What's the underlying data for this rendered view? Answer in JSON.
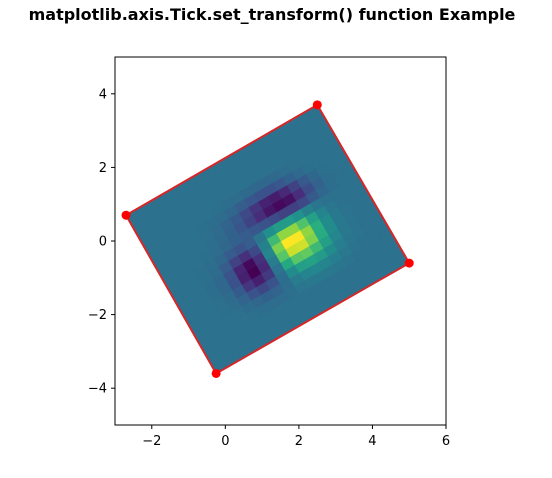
{
  "chart_data": {
    "type": "heatmap",
    "title": "matplotlib.axis.Tick.set_transform() function Example",
    "xlabel": "",
    "ylabel": "",
    "xlim": [
      -3,
      6
    ],
    "ylim": [
      -5,
      5
    ],
    "grid": false,
    "colormap": "viridis",
    "x_ticks": [
      -2,
      0,
      2,
      4,
      6
    ],
    "y_ticks": [
      -4,
      -2,
      0,
      2,
      4
    ],
    "x_tick_labels": [
      "−2",
      "0",
      "2",
      "4",
      "6"
    ],
    "y_tick_labels": [
      "−4",
      "−2",
      "0",
      "2",
      "4"
    ],
    "image_corners": [
      [
        -2.7,
        0.7
      ],
      [
        2.5,
        3.7
      ],
      [
        5.0,
        -0.6
      ],
      [
        -0.25,
        -3.6
      ]
    ],
    "outline_color": "#d62728",
    "marker_color": "#ff0000",
    "rotation_deg": 30,
    "image_extent": [
      -4,
      4,
      -4,
      4
    ],
    "image_values": [
      [
        0.0,
        0.0,
        0.0,
        0.0,
        0.0,
        0.0,
        0.0,
        0.0,
        0.0,
        0.0,
        0.0,
        0.0,
        0.0,
        0.0,
        0.0,
        0.0,
        0.0,
        0.0,
        0.0,
        0.0
      ],
      [
        0.0,
        0.0,
        0.0,
        0.0,
        0.0,
        0.0,
        0.0,
        0.0,
        0.0,
        0.0,
        0.0,
        0.0,
        0.0,
        0.0,
        0.0,
        0.0,
        0.0,
        0.0,
        0.0,
        0.0
      ],
      [
        0.0,
        0.0,
        0.0,
        0.0,
        0.0,
        0.0,
        0.0,
        0.0,
        0.0,
        0.0,
        0.0,
        0.0,
        0.0,
        0.0,
        0.0,
        0.0,
        0.0,
        0.0,
        0.0,
        0.0
      ],
      [
        0.0,
        0.0,
        0.0,
        0.0,
        0.0,
        0.0,
        0.0,
        0.0,
        0.0,
        0.0,
        0.0,
        0.0,
        0.0,
        0.0,
        0.0,
        0.0,
        0.0,
        0.0,
        0.0,
        0.0
      ],
      [
        0.0,
        0.0,
        0.0,
        0.0,
        0.0,
        0.0,
        0.0,
        -0.01,
        -0.02,
        -0.03,
        -0.05,
        -0.06,
        -0.06,
        -0.05,
        -0.03,
        -0.01,
        0.0,
        0.0,
        0.0,
        0.0
      ],
      [
        0.0,
        0.0,
        0.0,
        0.0,
        0.0,
        -0.01,
        -0.02,
        -0.04,
        -0.08,
        -0.13,
        -0.18,
        -0.22,
        -0.22,
        -0.18,
        -0.11,
        -0.05,
        -0.01,
        0.0,
        0.0,
        0.0
      ],
      [
        0.0,
        0.0,
        0.0,
        0.0,
        0.0,
        -0.01,
        -0.04,
        -0.09,
        -0.16,
        -0.26,
        -0.37,
        -0.46,
        -0.49,
        -0.43,
        -0.3,
        -0.16,
        -0.06,
        -0.01,
        0.0,
        0.0
      ],
      [
        0.0,
        0.0,
        0.0,
        0.0,
        0.0,
        -0.02,
        -0.05,
        -0.11,
        -0.19,
        -0.29,
        -0.41,
        -0.53,
        -0.59,
        -0.55,
        -0.41,
        -0.24,
        -0.1,
        -0.03,
        -0.01,
        0.0
      ],
      [
        0.0,
        0.0,
        0.0,
        0.0,
        -0.01,
        -0.03,
        -0.07,
        -0.11,
        -0.14,
        -0.17,
        -0.2,
        -0.25,
        -0.3,
        -0.31,
        -0.26,
        -0.16,
        -0.07,
        -0.02,
        0.0,
        0.0
      ],
      [
        0.0,
        0.0,
        0.0,
        -0.01,
        -0.02,
        -0.07,
        -0.15,
        -0.2,
        -0.14,
        0.02,
        0.19,
        0.28,
        0.28,
        0.2,
        0.1,
        0.03,
        0.0,
        0.0,
        0.0,
        0.0
      ],
      [
        0.0,
        0.0,
        0.0,
        -0.01,
        -0.04,
        -0.14,
        -0.3,
        -0.4,
        -0.26,
        0.1,
        0.5,
        0.75,
        0.75,
        0.56,
        0.31,
        0.12,
        0.03,
        0.0,
        0.0,
        0.0
      ],
      [
        0.0,
        0.0,
        0.0,
        -0.02,
        -0.06,
        -0.2,
        -0.45,
        -0.59,
        -0.39,
        0.13,
        0.69,
        1.02,
        1.01,
        0.75,
        0.42,
        0.17,
        0.05,
        0.01,
        0.0,
        0.0
      ],
      [
        0.0,
        0.0,
        0.0,
        -0.02,
        -0.06,
        -0.21,
        -0.47,
        -0.63,
        -0.43,
        0.07,
        0.59,
        0.9,
        0.91,
        0.7,
        0.4,
        0.17,
        0.05,
        0.01,
        0.0,
        0.0
      ],
      [
        0.0,
        0.0,
        0.0,
        -0.01,
        -0.04,
        -0.16,
        -0.36,
        -0.48,
        -0.34,
        0.01,
        0.37,
        0.59,
        0.62,
        0.49,
        0.3,
        0.13,
        0.04,
        0.01,
        0.0,
        0.0
      ],
      [
        0.0,
        0.0,
        0.0,
        -0.01,
        -0.03,
        -0.09,
        -0.2,
        -0.27,
        -0.2,
        -0.02,
        0.17,
        0.3,
        0.33,
        0.28,
        0.17,
        0.08,
        0.03,
        0.01,
        0.0,
        0.0
      ],
      [
        0.0,
        0.0,
        0.0,
        0.0,
        -0.01,
        -0.04,
        -0.08,
        -0.11,
        -0.09,
        -0.02,
        0.06,
        0.12,
        0.14,
        0.12,
        0.08,
        0.04,
        0.01,
        0.0,
        0.0,
        0.0
      ],
      [
        0.0,
        0.0,
        0.0,
        0.0,
        0.0,
        -0.01,
        -0.02,
        -0.03,
        -0.03,
        -0.01,
        0.02,
        0.04,
        0.05,
        0.04,
        0.03,
        0.01,
        0.0,
        0.0,
        0.0,
        0.0
      ],
      [
        0.0,
        0.0,
        0.0,
        0.0,
        0.0,
        0.0,
        0.0,
        0.0,
        0.0,
        0.0,
        0.0,
        0.0,
        0.0,
        0.0,
        0.0,
        0.0,
        0.0,
        0.0,
        0.0,
        0.0
      ],
      [
        0.0,
        0.0,
        0.0,
        0.0,
        0.0,
        0.0,
        0.0,
        0.0,
        0.0,
        0.0,
        0.0,
        0.0,
        0.0,
        0.0,
        0.0,
        0.0,
        0.0,
        0.0,
        0.0,
        0.0
      ],
      [
        0.0,
        0.0,
        0.0,
        0.0,
        0.0,
        0.0,
        0.0,
        0.0,
        0.0,
        0.0,
        0.0,
        0.0,
        0.0,
        0.0,
        0.0,
        0.0,
        0.0,
        0.0,
        0.0,
        0.0
      ]
    ],
    "value_range": [
      -0.63,
      1.02
    ]
  }
}
